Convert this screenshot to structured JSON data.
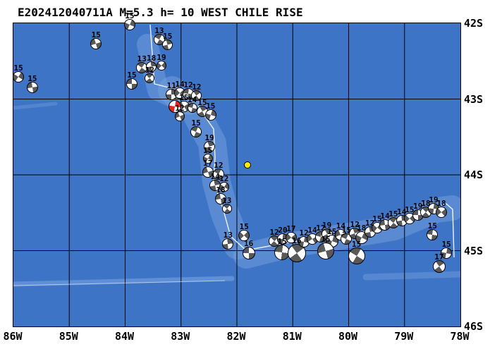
{
  "title": "E202412040711A M=5.3 h= 10 WEST CHILE RISE",
  "colors": {
    "ocean": "#3e74c6",
    "ridge_highlight": "#7aa6e0",
    "grid_line": "#000000",
    "frame": "#000000",
    "beachball_gray": "#595959",
    "beachball_white": "#ffffff",
    "main_event_red": "#e32421",
    "epicenter_yellow": "#ffee00",
    "plate_boundary_white": "#ffffff"
  },
  "axes": {
    "lon_ticks": [
      "86W",
      "85W",
      "84W",
      "83W",
      "82W",
      "81W",
      "80W",
      "79W",
      "78W"
    ],
    "lat_ticks": [
      "42S",
      "43S",
      "44S",
      "45S",
      "46S"
    ]
  },
  "map_data": {
    "type": "focal-mechanism-map",
    "region_name": "WEST CHILE RISE",
    "lon_range_w": [
      86,
      78
    ],
    "lat_range_s": [
      42,
      46
    ],
    "epicenter_marker": {
      "lon_w": 81.81,
      "lat_s": 43.87
    },
    "events": [
      {
        "lon_w": 83.92,
        "lat_s": 42.02,
        "depth": "15",
        "size": 16
      },
      {
        "lon_w": 84.52,
        "lat_s": 42.27,
        "depth": "15",
        "size": 16
      },
      {
        "lon_w": 83.39,
        "lat_s": 42.21,
        "depth": "13",
        "size": 16
      },
      {
        "lon_w": 83.24,
        "lat_s": 42.28,
        "depth": "15",
        "size": 15
      },
      {
        "lon_w": 85.91,
        "lat_s": 42.71,
        "depth": "15",
        "size": 16
      },
      {
        "lon_w": 85.66,
        "lat_s": 42.85,
        "depth": "15",
        "size": 16
      },
      {
        "lon_w": 83.7,
        "lat_s": 42.59,
        "depth": "13",
        "size": 16
      },
      {
        "lon_w": 83.53,
        "lat_s": 42.57,
        "depth": "18",
        "size": 15
      },
      {
        "lon_w": 83.35,
        "lat_s": 42.56,
        "depth": "19",
        "size": 14
      },
      {
        "lon_w": 83.88,
        "lat_s": 42.8,
        "depth": "15",
        "size": 16
      },
      {
        "lon_w": 83.56,
        "lat_s": 42.73,
        "depth": "12",
        "size": 14
      },
      {
        "lon_w": 83.17,
        "lat_s": 42.94,
        "depth": "11",
        "size": 16
      },
      {
        "lon_w": 83.02,
        "lat_s": 42.92,
        "depth": "14",
        "size": 16
      },
      {
        "lon_w": 82.87,
        "lat_s": 42.93,
        "depth": "12",
        "size": 16
      },
      {
        "lon_w": 82.72,
        "lat_s": 42.95,
        "depth": "12",
        "size": 15
      },
      {
        "lon_w": 83.11,
        "lat_s": 43.1,
        "depth": "",
        "size": 18,
        "color": "red"
      },
      {
        "lon_w": 82.95,
        "lat_s": 43.1,
        "depth": "15",
        "size": 16
      },
      {
        "lon_w": 82.8,
        "lat_s": 43.12,
        "depth": "14",
        "size": 14
      },
      {
        "lon_w": 82.62,
        "lat_s": 43.16,
        "depth": "15",
        "size": 16
      },
      {
        "lon_w": 82.47,
        "lat_s": 43.21,
        "depth": "15",
        "size": 16
      },
      {
        "lon_w": 83.02,
        "lat_s": 43.23,
        "depth": "12",
        "size": 14
      },
      {
        "lon_w": 82.73,
        "lat_s": 43.43,
        "depth": "15",
        "size": 16
      },
      {
        "lon_w": 82.49,
        "lat_s": 43.63,
        "depth": "19",
        "size": 16
      },
      {
        "lon_w": 82.52,
        "lat_s": 43.79,
        "depth": "15",
        "size": 14
      },
      {
        "lon_w": 82.52,
        "lat_s": 43.96,
        "depth": "17",
        "size": 16
      },
      {
        "lon_w": 82.33,
        "lat_s": 43.99,
        "depth": "12",
        "size": 16
      },
      {
        "lon_w": 82.39,
        "lat_s": 44.14,
        "depth": "14",
        "size": 16
      },
      {
        "lon_w": 82.23,
        "lat_s": 44.16,
        "depth": "12",
        "size": 14
      },
      {
        "lon_w": 82.29,
        "lat_s": 44.32,
        "depth": "18",
        "size": 16
      },
      {
        "lon_w": 82.18,
        "lat_s": 44.45,
        "depth": "13",
        "size": 14
      },
      {
        "lon_w": 82.16,
        "lat_s": 44.91,
        "depth": "13",
        "size": 16
      },
      {
        "lon_w": 81.87,
        "lat_s": 44.8,
        "depth": "15",
        "size": 16
      },
      {
        "lon_w": 81.79,
        "lat_s": 45.03,
        "depth": "16",
        "size": 18
      },
      {
        "lon_w": 81.33,
        "lat_s": 44.87,
        "depth": "12",
        "size": 16
      },
      {
        "lon_w": 81.18,
        "lat_s": 44.85,
        "depth": "20",
        "size": 16
      },
      {
        "lon_w": 81.03,
        "lat_s": 44.83,
        "depth": "17",
        "size": 16
      },
      {
        "lon_w": 81.19,
        "lat_s": 45.02,
        "depth": "15",
        "size": 22
      },
      {
        "lon_w": 80.93,
        "lat_s": 45.03,
        "depth": "16",
        "size": 26
      },
      {
        "lon_w": 80.8,
        "lat_s": 44.88,
        "depth": "12",
        "size": 16
      },
      {
        "lon_w": 80.65,
        "lat_s": 44.85,
        "depth": "14",
        "size": 16
      },
      {
        "lon_w": 80.5,
        "lat_s": 44.82,
        "depth": "12",
        "size": 16
      },
      {
        "lon_w": 80.39,
        "lat_s": 44.78,
        "depth": "19",
        "size": 16
      },
      {
        "lon_w": 80.3,
        "lat_s": 44.87,
        "depth": "15",
        "size": 18
      },
      {
        "lon_w": 80.14,
        "lat_s": 44.79,
        "depth": "14",
        "size": 16
      },
      {
        "lon_w": 80.04,
        "lat_s": 44.85,
        "depth": "15",
        "size": 16
      },
      {
        "lon_w": 79.89,
        "lat_s": 44.77,
        "depth": "12",
        "size": 16
      },
      {
        "lon_w": 79.77,
        "lat_s": 44.83,
        "depth": "18",
        "size": 18
      },
      {
        "lon_w": 80.41,
        "lat_s": 45.0,
        "depth": "15",
        "size": 24
      },
      {
        "lon_w": 79.86,
        "lat_s": 45.07,
        "depth": "15",
        "size": 24
      },
      {
        "lon_w": 79.62,
        "lat_s": 44.75,
        "depth": "12",
        "size": 16
      },
      {
        "lon_w": 79.49,
        "lat_s": 44.7,
        "depth": "15",
        "size": 16
      },
      {
        "lon_w": 79.35,
        "lat_s": 44.66,
        "depth": "14",
        "size": 16
      },
      {
        "lon_w": 79.2,
        "lat_s": 44.63,
        "depth": "15",
        "size": 16
      },
      {
        "lon_w": 79.05,
        "lat_s": 44.6,
        "depth": "14",
        "size": 16
      },
      {
        "lon_w": 78.91,
        "lat_s": 44.58,
        "depth": "15",
        "size": 16
      },
      {
        "lon_w": 78.76,
        "lat_s": 44.53,
        "depth": "19",
        "size": 16
      },
      {
        "lon_w": 78.62,
        "lat_s": 44.49,
        "depth": "18",
        "size": 16
      },
      {
        "lon_w": 78.48,
        "lat_s": 44.45,
        "depth": "19",
        "size": 16
      },
      {
        "lon_w": 78.34,
        "lat_s": 44.49,
        "depth": "18",
        "size": 16
      },
      {
        "lon_w": 78.5,
        "lat_s": 44.79,
        "depth": "15",
        "size": 16
      },
      {
        "lon_w": 78.38,
        "lat_s": 45.21,
        "depth": "17",
        "size": 18
      },
      {
        "lon_w": 78.25,
        "lat_s": 45.03,
        "depth": "15",
        "size": 16
      }
    ]
  }
}
